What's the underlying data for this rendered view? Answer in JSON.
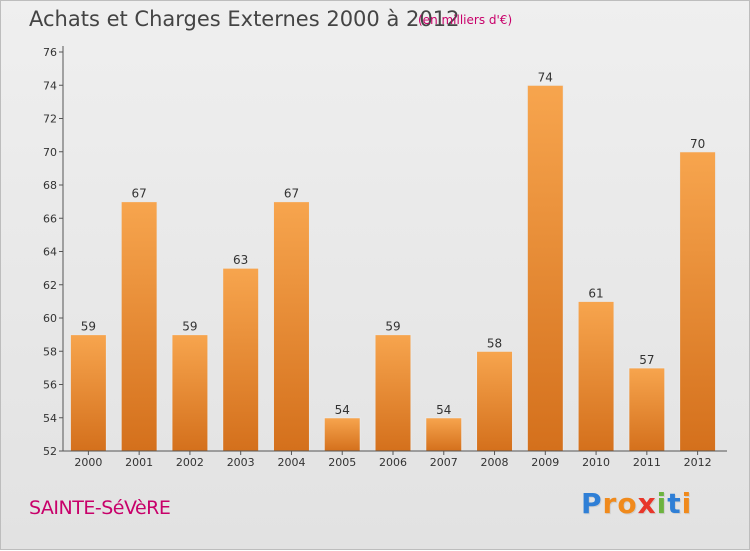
{
  "header": {
    "title": "Achats et Charges Externes 2000 à 2012",
    "subtitle": "(en milliers d'€)"
  },
  "footer": {
    "commune": "SAINTE-SéVèRE",
    "logo_text": "Proxiti",
    "logo_letters": [
      {
        "ch": "P",
        "color": "#2f7fd6"
      },
      {
        "ch": "r",
        "color": "#f08a1c"
      },
      {
        "ch": "o",
        "color": "#f08a1c"
      },
      {
        "ch": "x",
        "color": "#e8362a"
      },
      {
        "ch": "i",
        "color": "#6db33f"
      },
      {
        "ch": "t",
        "color": "#2f7fd6"
      },
      {
        "ch": "i",
        "color": "#f08a1c"
      }
    ]
  },
  "chart_data": {
    "type": "bar",
    "title": "Achats et Charges Externes 2000 à 2012",
    "subtitle": "(en milliers d'€)",
    "categories": [
      "2000",
      "2001",
      "2002",
      "2003",
      "2004",
      "2005",
      "2006",
      "2007",
      "2008",
      "2009",
      "2010",
      "2011",
      "2012"
    ],
    "values": [
      59,
      67,
      59,
      63,
      67,
      54,
      59,
      54,
      58,
      74,
      61,
      57,
      70
    ],
    "ylim": [
      52,
      76
    ],
    "yticks": [
      52,
      54,
      56,
      58,
      60,
      62,
      64,
      66,
      68,
      70,
      72,
      74,
      76
    ],
    "grid": false,
    "bar_color_top": "#f7a54e",
    "bar_color_bottom": "#d4701c",
    "axis_color": "#555555"
  }
}
